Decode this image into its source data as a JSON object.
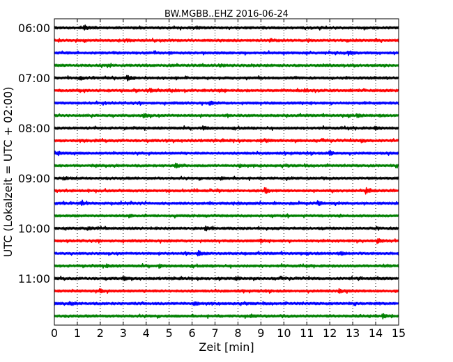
{
  "chart_data": {
    "type": "line",
    "title": "BW.MGBB..EHZ 2016-06-24",
    "xlabel": "Zeit  [min]",
    "ylabel": "UTC (Lokalzeit = UTC + 02:00)",
    "xlim": [
      0,
      15
    ],
    "x_ticks": [
      "0",
      "1",
      "2",
      "3",
      "4",
      "5",
      "6",
      "7",
      "8",
      "9",
      "10",
      "11",
      "12",
      "13",
      "14",
      "15"
    ],
    "y_ticks": [
      "06:00",
      "07:00",
      "08:00",
      "09:00",
      "10:00",
      "11:00"
    ],
    "grid": "vertical dotted",
    "colors": [
      "#000000",
      "#ff0000",
      "#0000ff",
      "#008000"
    ],
    "series": [
      {
        "start": "06:00",
        "events": [
          [
            1.3,
            2.2
          ],
          [
            6.2,
            1.3
          ]
        ]
      },
      {
        "start": "06:15",
        "events": [
          [
            9.4,
            1.8
          ],
          [
            3.2,
            1.2
          ]
        ]
      },
      {
        "start": "06:30",
        "events": [
          [
            12.8,
            2.4
          ],
          [
            5.0,
            1.1
          ]
        ]
      },
      {
        "start": "06:45",
        "events": [
          [
            7.2,
            1.2
          ]
        ]
      },
      {
        "start": "07:00",
        "events": [
          [
            3.2,
            2.6
          ],
          [
            1.1,
            1.4
          ]
        ]
      },
      {
        "start": "07:15",
        "events": [
          [
            4.2,
            2.2
          ],
          [
            10.9,
            1.2
          ]
        ]
      },
      {
        "start": "07:30",
        "events": [
          [
            6.8,
            1.5
          ]
        ]
      },
      {
        "start": "07:45",
        "events": [
          [
            3.9,
            2.8
          ],
          [
            13.2,
            1.3
          ]
        ]
      },
      {
        "start": "08:00",
        "events": [
          [
            6.5,
            2.4
          ],
          [
            14.0,
            1.3
          ]
        ]
      },
      {
        "start": "08:15",
        "events": [
          [
            9.2,
            1.4
          ],
          [
            13.4,
            1.6
          ]
        ]
      },
      {
        "start": "08:30",
        "events": [
          [
            12.0,
            2.8
          ],
          [
            0.2,
            1.6
          ]
        ]
      },
      {
        "start": "08:45",
        "events": [
          [
            5.3,
            2.0
          ],
          [
            8.1,
            1.2
          ]
        ]
      },
      {
        "start": "09:00",
        "events": [
          [
            0.4,
            1.8
          ],
          [
            7.3,
            1.2
          ]
        ]
      },
      {
        "start": "09:15",
        "events": [
          [
            9.2,
            3.0
          ],
          [
            13.6,
            3.6
          ]
        ]
      },
      {
        "start": "09:30",
        "events": [
          [
            11.5,
            2.4
          ],
          [
            1.2,
            1.8
          ]
        ]
      },
      {
        "start": "09:45",
        "events": [
          [
            3.3,
            1.2
          ]
        ]
      },
      {
        "start": "10:00",
        "events": [
          [
            6.6,
            2.4
          ],
          [
            1.5,
            1.2
          ]
        ]
      },
      {
        "start": "10:15",
        "events": [
          [
            14.1,
            3.2
          ],
          [
            9.0,
            1.4
          ]
        ]
      },
      {
        "start": "10:30",
        "events": [
          [
            6.3,
            2.6
          ],
          [
            12.5,
            1.2
          ]
        ]
      },
      {
        "start": "10:45",
        "events": [
          [
            4.6,
            1.6
          ],
          [
            2.3,
            1.2
          ]
        ]
      },
      {
        "start": "11:00",
        "events": [
          [
            3.0,
            2.0
          ],
          [
            7.9,
            1.8
          ]
        ]
      },
      {
        "start": "11:15",
        "events": [
          [
            2.0,
            1.8
          ],
          [
            12.4,
            2.0
          ]
        ]
      },
      {
        "start": "11:30",
        "events": [
          [
            6.1,
            2.2
          ],
          [
            0.7,
            1.4
          ]
        ]
      },
      {
        "start": "11:45",
        "events": [
          [
            14.3,
            2.8
          ],
          [
            8.6,
            1.2
          ]
        ]
      }
    ]
  }
}
